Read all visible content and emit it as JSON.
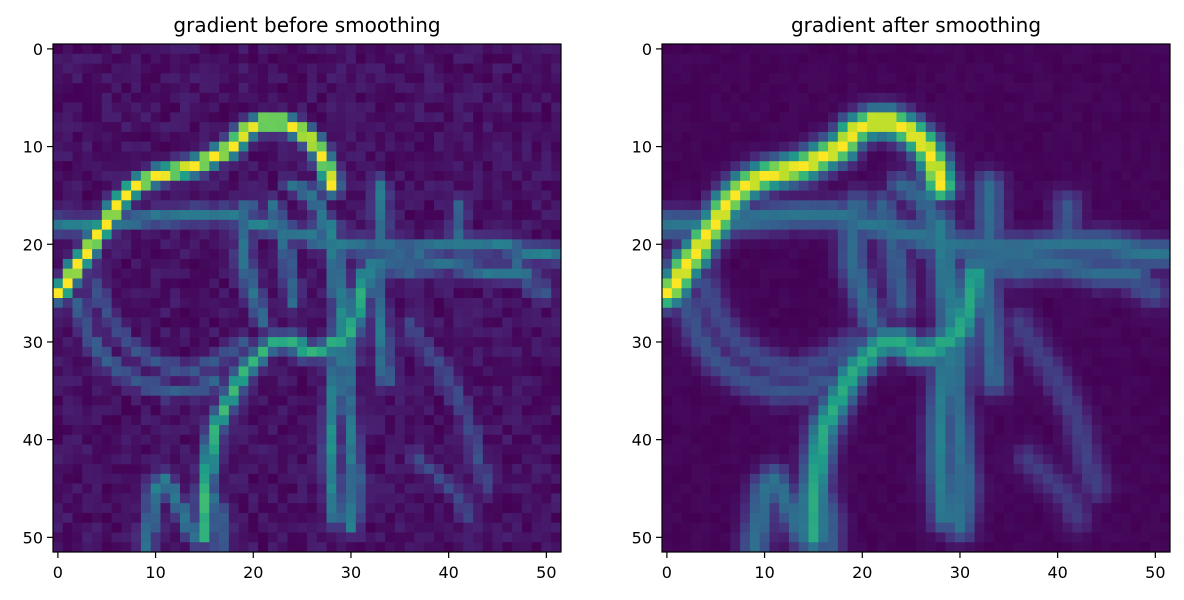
{
  "chart_data": [
    {
      "type": "heatmap",
      "title": "gradient before smoothing",
      "colormap": "viridis",
      "grid_size": [
        52,
        52
      ],
      "xlim": [
        -0.5,
        51.5
      ],
      "ylim": [
        51.5,
        -0.5
      ],
      "xticks": [
        0,
        10,
        20,
        30,
        40,
        50
      ],
      "yticks": [
        0,
        10,
        20,
        30,
        40,
        50
      ],
      "xtick_labels": [
        "0",
        "10",
        "20",
        "30",
        "40",
        "50"
      ],
      "ytick_labels": [
        "0",
        "10",
        "20",
        "30",
        "40",
        "50"
      ],
      "smoothed": false,
      "grid": false
    },
    {
      "type": "heatmap",
      "title": "gradient after smoothing",
      "colormap": "viridis",
      "grid_size": [
        52,
        52
      ],
      "xlim": [
        -0.5,
        51.5
      ],
      "ylim": [
        51.5,
        -0.5
      ],
      "xticks": [
        0,
        10,
        20,
        30,
        40,
        50
      ],
      "yticks": [
        0,
        10,
        20,
        30,
        40,
        50
      ],
      "xtick_labels": [
        "0",
        "10",
        "20",
        "30",
        "40",
        "50"
      ],
      "ytick_labels": [
        "0",
        "10",
        "20",
        "30",
        "40",
        "50"
      ],
      "smoothed": true,
      "grid": false
    }
  ]
}
